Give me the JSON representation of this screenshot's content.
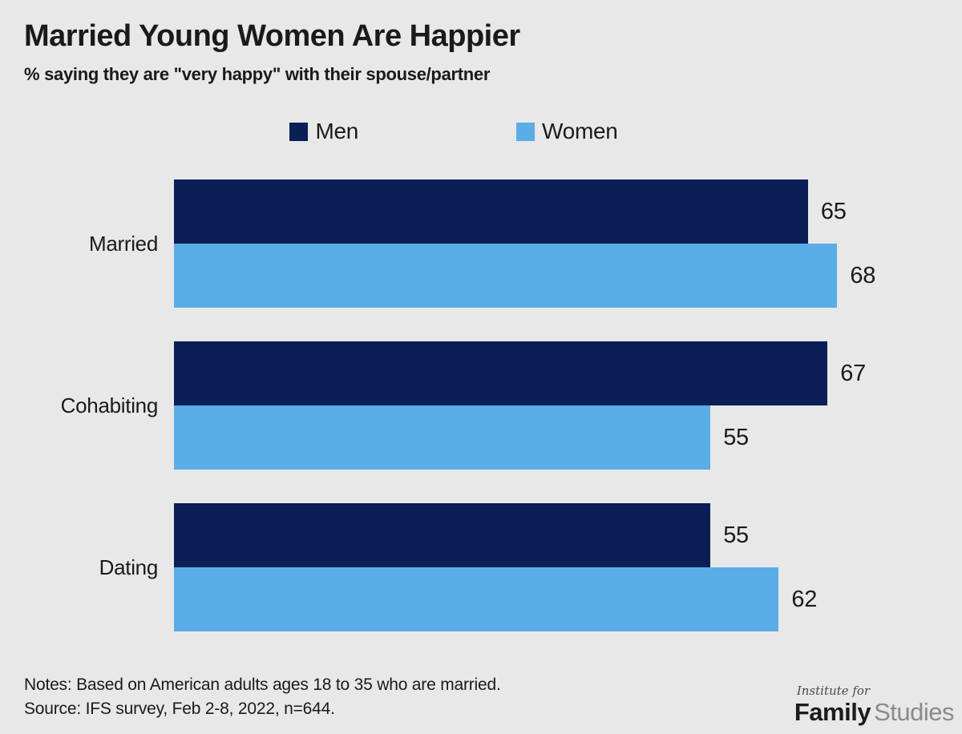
{
  "chart_data": {
    "type": "bar",
    "orientation": "horizontal",
    "title": "Married Young Women Are Happier",
    "subtitle": "% saying they are \"very happy\" with their spouse/partner",
    "categories": [
      "Married",
      "Cohabiting",
      "Dating"
    ],
    "series": [
      {
        "name": "Men",
        "color": "#0b1e55",
        "values": [
          65,
          67,
          55
        ]
      },
      {
        "name": "Women",
        "color": "#5bade6",
        "values": [
          68,
          55,
          62
        ]
      }
    ],
    "xlim": [
      0,
      77.5
    ],
    "value_labels": true,
    "legend_position": "top",
    "grid": false
  },
  "notes": {
    "line1": "Notes: Based on American adults ages 18 to 35 who are married.",
    "line2": "Source: IFS survey, Feb 2-8, 2022, n=644."
  },
  "logo": {
    "top": "Institute for",
    "bold": "Family",
    "light": "Studies"
  },
  "colors": {
    "background": "#e8e8e8",
    "men_bar": "#0b1e55",
    "women_bar": "#5bade6",
    "text": "#1a1a1a",
    "logo_light_text": "#8b8b8b"
  }
}
